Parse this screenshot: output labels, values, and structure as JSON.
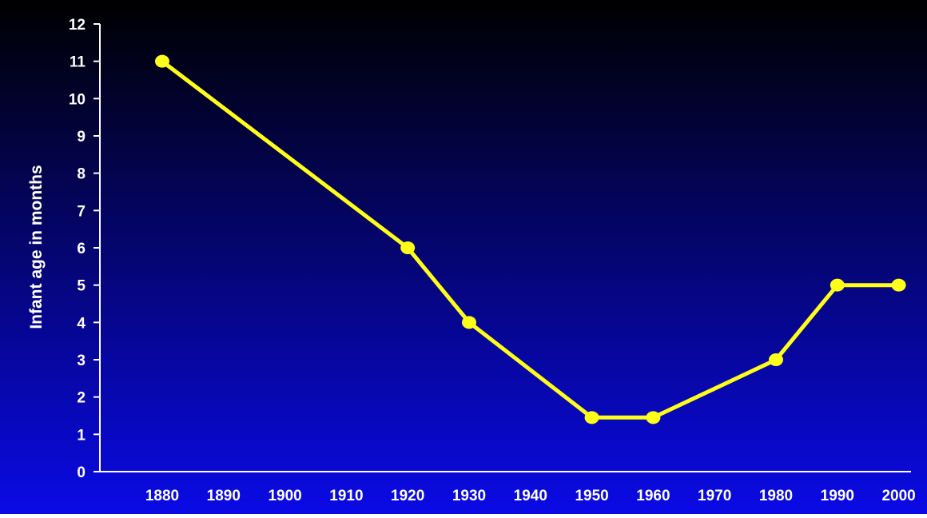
{
  "colors": {
    "background_top": "#000000",
    "background_bottom": "#0a0ae6",
    "axis": "#ffffff",
    "series_line": "#ffff1a",
    "text": "#ffffff"
  },
  "chart_data": {
    "type": "line",
    "title": "",
    "xlabel": "",
    "ylabel": "Infant age in months",
    "xlim": [
      1870,
      2000
    ],
    "ylim": [
      0,
      12
    ],
    "x_ticks": [
      1880,
      1890,
      1900,
      1910,
      1920,
      1930,
      1940,
      1950,
      1960,
      1970,
      1980,
      1990,
      2000
    ],
    "y_ticks": [
      0,
      1,
      2,
      3,
      4,
      5,
      6,
      7,
      8,
      9,
      10,
      11,
      12
    ],
    "grid": false,
    "legend": "none",
    "series": [
      {
        "x": [
          1880,
          1920,
          1930,
          1950,
          1960,
          1980,
          1990,
          2000
        ],
        "y": [
          11,
          6,
          4,
          1.45,
          1.45,
          3,
          5,
          5
        ]
      }
    ]
  }
}
